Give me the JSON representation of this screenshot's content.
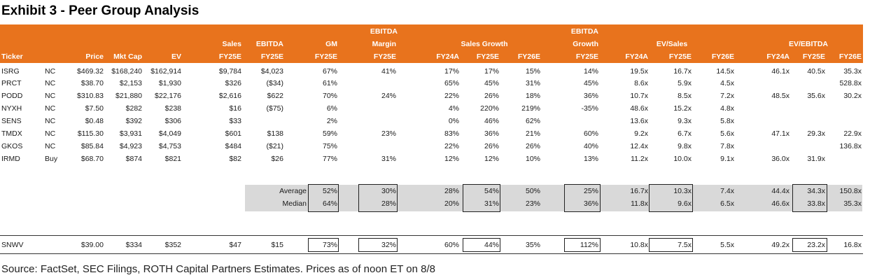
{
  "title": "Exhibit 3 - Peer Group Analysis",
  "headers": {
    "ticker": "Ticker",
    "price": "Price",
    "mktcap": "Mkt Cap",
    "ev": "EV",
    "sales_top": "Sales",
    "sales_bot": "FY25E",
    "ebitda_top": "EBITDA",
    "ebitda_bot": "FY25E",
    "gm_top": "GM",
    "gm_bot": "FY25E",
    "margin_top": "EBITDA",
    "margin_mid": "Margin",
    "margin_bot": "FY25E",
    "sales_growth": "Sales Growth",
    "sg_fy24a": "FY24A",
    "sg_fy25e": "FY25E",
    "sg_fy26e": "FY26E",
    "eg_top": "EBITDA",
    "eg_mid": "Growth",
    "eg_bot": "FY25E",
    "ev_sales": "EV/Sales",
    "evs_fy24a": "FY24A",
    "evs_fy25e": "FY25E",
    "evs_fy26e": "FY26E",
    "ev_ebitda": "EV/EBITDA",
    "eve_fy24a": "FY24A",
    "eve_fy25e": "FY25E",
    "eve_fy26e": "FY26E"
  },
  "rows": [
    {
      "ticker": "ISRG",
      "rating": "NC",
      "price": "$469.32",
      "mktcap": "$168,240",
      "ev": "$162,914",
      "sales": "$9,784",
      "ebitda": "$4,023",
      "gm": "67%",
      "margin": "41%",
      "sg24": "17%",
      "sg25": "17%",
      "sg26": "15%",
      "eg": "14%",
      "evs24": "19.5x",
      "evs25": "16.7x",
      "evs26": "14.5x",
      "eve24": "46.1x",
      "eve25": "40.5x",
      "eve26": "35.3x"
    },
    {
      "ticker": "PRCT",
      "rating": "NC",
      "price": "$38.70",
      "mktcap": "$2,153",
      "ev": "$1,930",
      "sales": "$326",
      "ebitda": "($34)",
      "gm": "61%",
      "margin": "",
      "sg24": "65%",
      "sg25": "45%",
      "sg26": "31%",
      "eg": "45%",
      "evs24": "8.6x",
      "evs25": "5.9x",
      "evs26": "4.5x",
      "eve24": "",
      "eve25": "",
      "eve26": "528.8x"
    },
    {
      "ticker": "PODD",
      "rating": "NC",
      "price": "$310.83",
      "mktcap": "$21,880",
      "ev": "$22,176",
      "sales": "$2,616",
      "ebitda": "$622",
      "gm": "70%",
      "margin": "24%",
      "sg24": "22%",
      "sg25": "26%",
      "sg26": "18%",
      "eg": "36%",
      "evs24": "10.7x",
      "evs25": "8.5x",
      "evs26": "7.2x",
      "eve24": "48.5x",
      "eve25": "35.6x",
      "eve26": "30.2x"
    },
    {
      "ticker": "NYXH",
      "rating": "NC",
      "price": "$7.50",
      "mktcap": "$282",
      "ev": "$238",
      "sales": "$16",
      "ebitda": "($75)",
      "gm": "6%",
      "margin": "",
      "sg24": "4%",
      "sg25": "220%",
      "sg26": "219%",
      "eg": "-35%",
      "evs24": "48.6x",
      "evs25": "15.2x",
      "evs26": "4.8x",
      "eve24": "",
      "eve25": "",
      "eve26": ""
    },
    {
      "ticker": "SENS",
      "rating": "NC",
      "price": "$0.48",
      "mktcap": "$392",
      "ev": "$306",
      "sales": "$33",
      "ebitda": "",
      "gm": "2%",
      "margin": "",
      "sg24": "0%",
      "sg25": "46%",
      "sg26": "62%",
      "eg": "",
      "evs24": "13.6x",
      "evs25": "9.3x",
      "evs26": "5.8x",
      "eve24": "",
      "eve25": "",
      "eve26": ""
    },
    {
      "ticker": "TMDX",
      "rating": "NC",
      "price": "$115.30",
      "mktcap": "$3,931",
      "ev": "$4,049",
      "sales": "$601",
      "ebitda": "$138",
      "gm": "59%",
      "margin": "23%",
      "sg24": "83%",
      "sg25": "36%",
      "sg26": "21%",
      "eg": "60%",
      "evs24": "9.2x",
      "evs25": "6.7x",
      "evs26": "5.6x",
      "eve24": "47.1x",
      "eve25": "29.3x",
      "eve26": "22.9x"
    },
    {
      "ticker": "GKOS",
      "rating": "NC",
      "price": "$85.84",
      "mktcap": "$4,923",
      "ev": "$4,753",
      "sales": "$484",
      "ebitda": "($21)",
      "gm": "75%",
      "margin": "",
      "sg24": "22%",
      "sg25": "26%",
      "sg26": "26%",
      "eg": "40%",
      "evs24": "12.4x",
      "evs25": "9.8x",
      "evs26": "7.8x",
      "eve24": "",
      "eve25": "",
      "eve26": "136.8x"
    },
    {
      "ticker": "IRMD",
      "rating": "Buy",
      "price": "$68.70",
      "mktcap": "$874",
      "ev": "$821",
      "sales": "$82",
      "ebitda": "$26",
      "gm": "77%",
      "margin": "31%",
      "sg24": "12%",
      "sg25": "12%",
      "sg26": "10%",
      "eg": "13%",
      "evs24": "11.2x",
      "evs25": "10.0x",
      "evs26": "9.1x",
      "eve24": "36.0x",
      "eve25": "31.9x",
      "eve26": ""
    }
  ],
  "summary": [
    {
      "label": "Average",
      "gm": "52%",
      "margin": "30%",
      "sg24": "28%",
      "sg25": "54%",
      "sg26": "50%",
      "eg": "25%",
      "evs24": "16.7x",
      "evs25": "10.3x",
      "evs26": "7.4x",
      "eve24": "44.4x",
      "eve25": "34.3x",
      "eve26": "150.8x"
    },
    {
      "label": "Median",
      "gm": "64%",
      "margin": "28%",
      "sg24": "20%",
      "sg25": "31%",
      "sg26": "23%",
      "eg": "36%",
      "evs24": "11.8x",
      "evs25": "9.6x",
      "evs26": "6.5x",
      "eve24": "46.6x",
      "eve25": "33.8x",
      "eve26": "35.3x"
    }
  ],
  "target": {
    "ticker": "SNWV",
    "price": "$39.00",
    "mktcap": "$334",
    "ev": "$352",
    "sales": "$47",
    "ebitda": "$15",
    "gm": "73%",
    "margin": "32%",
    "sg24": "60%",
    "sg25": "44%",
    "sg26": "35%",
    "eg": "112%",
    "evs24": "10.8x",
    "evs25": "7.5x",
    "evs26": "5.5x",
    "eve24": "49.2x",
    "eve25": "23.2x",
    "eve26": "16.8x"
  },
  "footer": "Source: FactSet, SEC Filings, ROTH Capital Partners Estimates. Prices as of noon ET on 8/8"
}
